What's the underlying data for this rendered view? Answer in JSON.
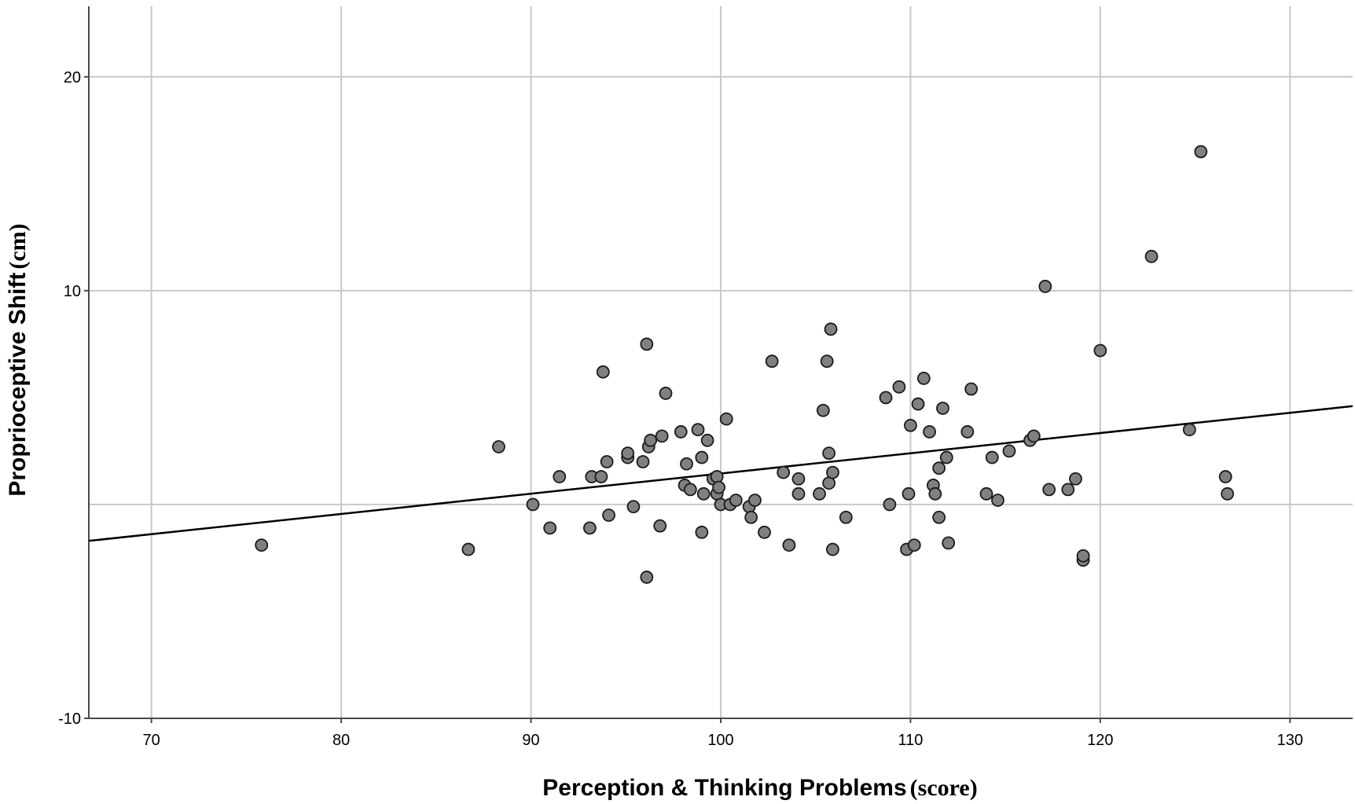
{
  "chart_data": {
    "type": "scatter",
    "xlabel_main": "Perception & Thinking Problems",
    "xlabel_unit": "(score)",
    "ylabel_main": "Proprioceptive Shift",
    "ylabel_unit": "(cm)",
    "xlim": [
      66.7,
      133.3
    ],
    "ylim": [
      -10,
      23.3
    ],
    "x_ticks": [
      70,
      80,
      90,
      100,
      110,
      120,
      130
    ],
    "y_ticks": [
      -10,
      10,
      20
    ],
    "x_tick_labels": [
      "70",
      "80",
      "90",
      "100",
      "110",
      "120",
      "130"
    ],
    "y_tick_labels": [
      "-10",
      "10",
      "20"
    ],
    "grid": true,
    "marker_color": "#808080",
    "line_color": "#000000",
    "fit_line": {
      "x": [
        66.7,
        133.3
      ],
      "y": [
        -1.7,
        4.6
      ]
    },
    "points": [
      [
        75.8,
        -1.9
      ],
      [
        86.7,
        -2.1
      ],
      [
        88.3,
        2.7
      ],
      [
        90.1,
        0.0
      ],
      [
        91.0,
        -1.1
      ],
      [
        91.5,
        1.3
      ],
      [
        93.1,
        -1.1
      ],
      [
        93.2,
        1.3
      ],
      [
        93.7,
        1.3
      ],
      [
        93.8,
        6.2
      ],
      [
        94.0,
        2.0
      ],
      [
        94.1,
        -0.5
      ],
      [
        95.1,
        2.2
      ],
      [
        95.1,
        2.4
      ],
      [
        95.4,
        -0.1
      ],
      [
        95.9,
        2.0
      ],
      [
        96.1,
        7.5
      ],
      [
        96.2,
        2.7
      ],
      [
        96.3,
        3.0
      ],
      [
        96.1,
        -3.4
      ],
      [
        96.8,
        -1.0
      ],
      [
        96.9,
        3.2
      ],
      [
        97.1,
        5.2
      ],
      [
        97.9,
        3.4
      ],
      [
        98.1,
        0.9
      ],
      [
        98.2,
        1.9
      ],
      [
        98.4,
        0.7
      ],
      [
        98.8,
        3.5
      ],
      [
        99.0,
        2.2
      ],
      [
        99.0,
        -1.3
      ],
      [
        99.1,
        0.5
      ],
      [
        99.3,
        3.0
      ],
      [
        99.6,
        1.2
      ],
      [
        99.8,
        0.5
      ],
      [
        99.8,
        1.3
      ],
      [
        99.9,
        0.8
      ],
      [
        100.0,
        0.0
      ],
      [
        100.3,
        4.0
      ],
      [
        100.5,
        0.0
      ],
      [
        100.8,
        0.2
      ],
      [
        101.5,
        -0.1
      ],
      [
        101.6,
        -0.6
      ],
      [
        101.8,
        0.2
      ],
      [
        102.3,
        -1.3
      ],
      [
        102.7,
        6.7
      ],
      [
        103.3,
        1.5
      ],
      [
        103.6,
        -1.9
      ],
      [
        104.1,
        1.2
      ],
      [
        104.1,
        0.5
      ],
      [
        105.2,
        0.5
      ],
      [
        105.4,
        4.4
      ],
      [
        105.6,
        6.7
      ],
      [
        105.7,
        1.0
      ],
      [
        105.7,
        2.4
      ],
      [
        105.8,
        8.2
      ],
      [
        105.9,
        -2.1
      ],
      [
        105.9,
        1.5
      ],
      [
        106.6,
        -0.6
      ],
      [
        108.7,
        5.0
      ],
      [
        108.9,
        0.0
      ],
      [
        109.4,
        5.5
      ],
      [
        109.8,
        -2.1
      ],
      [
        109.9,
        0.5
      ],
      [
        110.0,
        3.7
      ],
      [
        110.2,
        -1.9
      ],
      [
        110.4,
        4.7
      ],
      [
        110.7,
        5.9
      ],
      [
        111.0,
        3.4
      ],
      [
        111.2,
        0.9
      ],
      [
        111.3,
        0.5
      ],
      [
        111.5,
        1.7
      ],
      [
        111.5,
        -0.6
      ],
      [
        111.7,
        4.5
      ],
      [
        111.9,
        2.2
      ],
      [
        112.0,
        -1.8
      ],
      [
        113.0,
        3.4
      ],
      [
        113.2,
        5.4
      ],
      [
        114.0,
        0.5
      ],
      [
        114.3,
        2.2
      ],
      [
        114.6,
        0.2
      ],
      [
        115.2,
        2.5
      ],
      [
        116.3,
        3.0
      ],
      [
        116.5,
        3.2
      ],
      [
        117.1,
        10.2
      ],
      [
        117.3,
        0.7
      ],
      [
        118.3,
        0.7
      ],
      [
        118.7,
        1.2
      ],
      [
        119.1,
        -2.6
      ],
      [
        119.1,
        -2.4
      ],
      [
        120.0,
        7.2
      ],
      [
        122.7,
        11.6
      ],
      [
        124.7,
        3.5
      ],
      [
        125.3,
        16.5
      ],
      [
        126.6,
        1.3
      ],
      [
        126.7,
        0.5
      ]
    ]
  }
}
